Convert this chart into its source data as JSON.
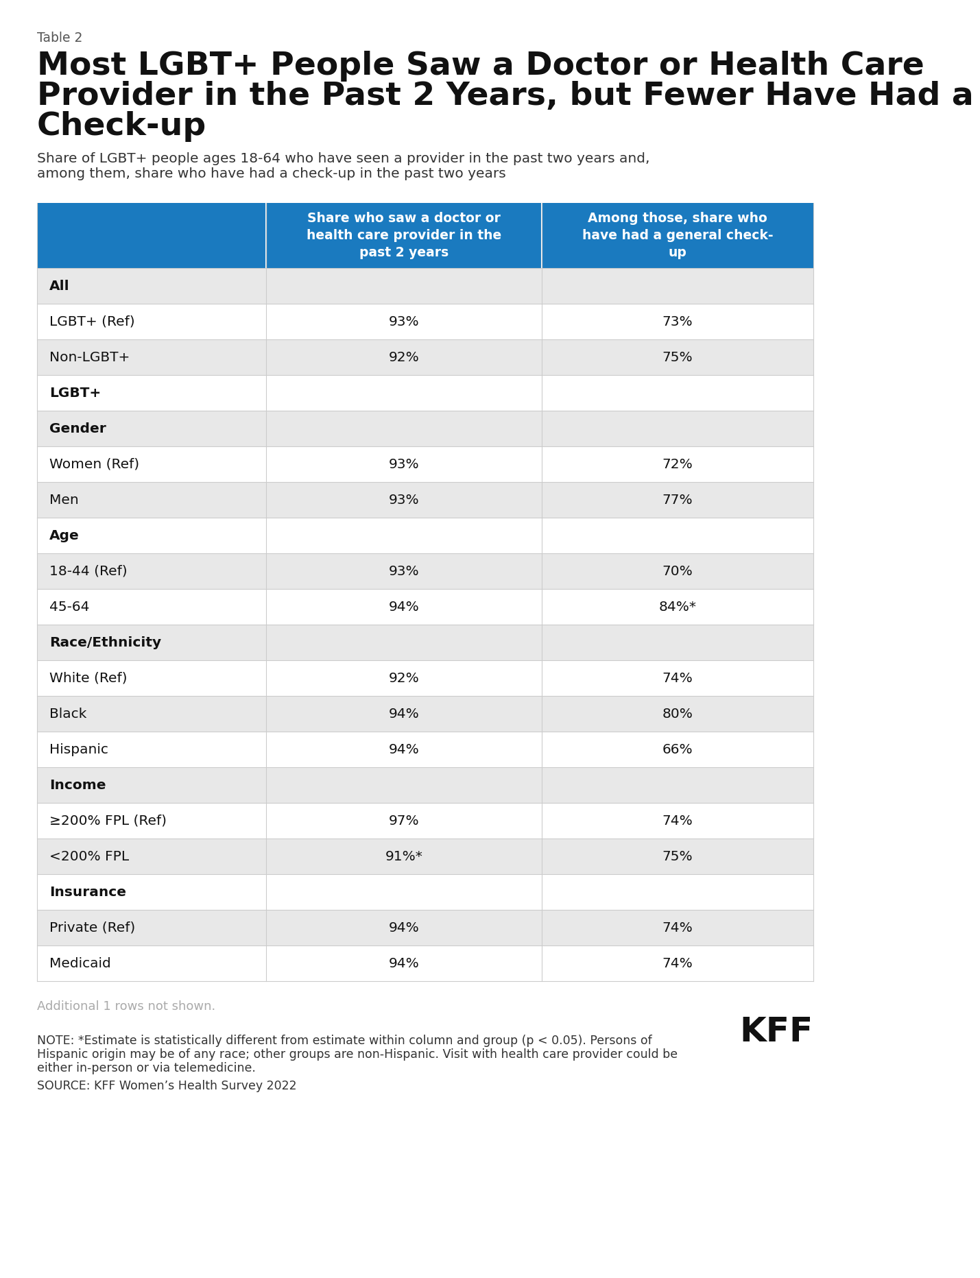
{
  "table_label": "Table 2",
  "title_line1": "Most LGBT+ People Saw a Doctor or Health Care",
  "title_line2": "Provider in the Past 2 Years, but Fewer Have Had a",
  "title_line3": "Check-up",
  "subtitle_line1": "Share of LGBT+ people ages 18-64 who have seen a provider in the past two years and,",
  "subtitle_line2": "among them, share who have had a check-up in the past two years",
  "col1_header": "Share who saw a doctor or\nhealth care provider in the\npast 2 years",
  "col2_header": "Among those, share who\nhave had a general check-\nup",
  "header_bg": "#1a7abf",
  "header_text_color": "#ffffff",
  "rows": [
    {
      "label": "All",
      "val1": "",
      "val2": "",
      "is_section": true,
      "bg": "#e8e8e8"
    },
    {
      "label": "LGBT+ (Ref)",
      "val1": "93%",
      "val2": "73%",
      "is_section": false,
      "bg": "#ffffff"
    },
    {
      "label": "Non-LGBT+",
      "val1": "92%",
      "val2": "75%",
      "is_section": false,
      "bg": "#e8e8e8"
    },
    {
      "label": "LGBT+",
      "val1": "",
      "val2": "",
      "is_section": true,
      "bg": "#ffffff"
    },
    {
      "label": "Gender",
      "val1": "",
      "val2": "",
      "is_section": true,
      "bg": "#e8e8e8"
    },
    {
      "label": "Women (Ref)",
      "val1": "93%",
      "val2": "72%",
      "is_section": false,
      "bg": "#ffffff"
    },
    {
      "label": "Men",
      "val1": "93%",
      "val2": "77%",
      "is_section": false,
      "bg": "#e8e8e8"
    },
    {
      "label": "Age",
      "val1": "",
      "val2": "",
      "is_section": true,
      "bg": "#ffffff"
    },
    {
      "label": "18-44 (Ref)",
      "val1": "93%",
      "val2": "70%",
      "is_section": false,
      "bg": "#e8e8e8"
    },
    {
      "label": "45-64",
      "val1": "94%",
      "val2": "84%*",
      "is_section": false,
      "bg": "#ffffff"
    },
    {
      "label": "Race/Ethnicity",
      "val1": "",
      "val2": "",
      "is_section": true,
      "bg": "#e8e8e8"
    },
    {
      "label": "White (Ref)",
      "val1": "92%",
      "val2": "74%",
      "is_section": false,
      "bg": "#ffffff"
    },
    {
      "label": "Black",
      "val1": "94%",
      "val2": "80%",
      "is_section": false,
      "bg": "#e8e8e8"
    },
    {
      "label": "Hispanic",
      "val1": "94%",
      "val2": "66%",
      "is_section": false,
      "bg": "#ffffff"
    },
    {
      "label": "Income",
      "val1": "",
      "val2": "",
      "is_section": true,
      "bg": "#e8e8e8"
    },
    {
      "label": "≥200% FPL (Ref)",
      "val1": "97%",
      "val2": "74%",
      "is_section": false,
      "bg": "#ffffff"
    },
    {
      "label": "<200% FPL",
      "val1": "91%*",
      "val2": "75%",
      "is_section": false,
      "bg": "#e8e8e8"
    },
    {
      "label": "Insurance",
      "val1": "",
      "val2": "",
      "is_section": true,
      "bg": "#ffffff"
    },
    {
      "label": "Private (Ref)",
      "val1": "94%",
      "val2": "74%",
      "is_section": false,
      "bg": "#e8e8e8"
    },
    {
      "label": "Medicaid",
      "val1": "94%",
      "val2": "74%",
      "is_section": false,
      "bg": "#ffffff"
    }
  ],
  "footnote_additional": "Additional 1 rows not shown.",
  "footnote_note1": "NOTE: *Estimate is statistically different from estimate within column and group (p < 0.05). Persons of",
  "footnote_note2": "Hispanic origin may be of any race; other groups are non-Hispanic. Visit with health care provider could be",
  "footnote_note3": "either in-person or via telemedicine.",
  "footnote_source": "SOURCE: KFF Women’s Health Survey 2022",
  "kff_logo_text": "KFF",
  "bg_color": "#ffffff",
  "border_color": "#cccccc",
  "text_color": "#333333",
  "footnote_additional_color": "#aaaaaa"
}
